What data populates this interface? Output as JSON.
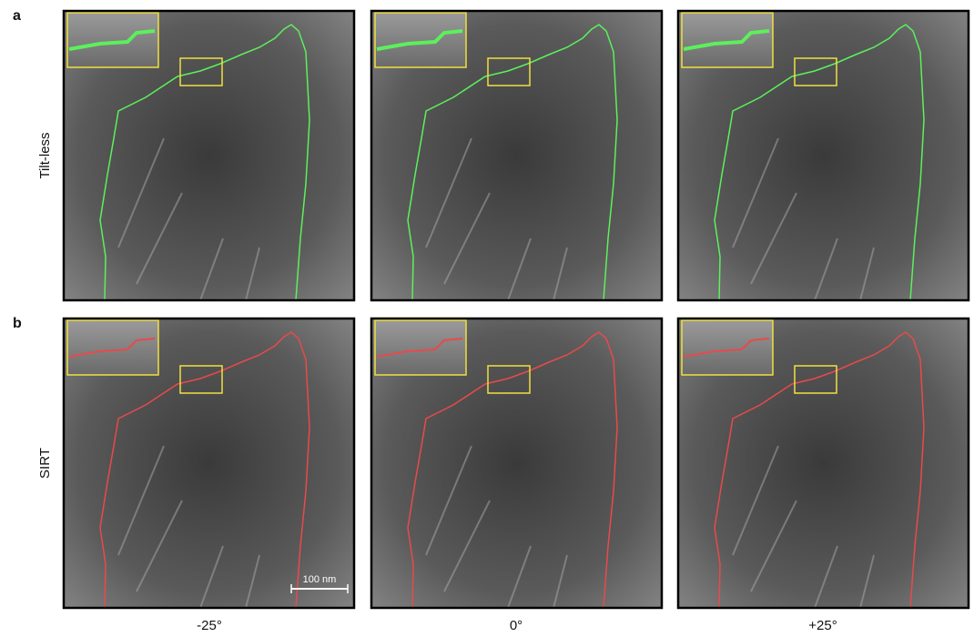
{
  "panel_labels": [
    "a",
    "b"
  ],
  "rows": [
    "Tilt-less",
    "SIRT"
  ],
  "columns": [
    "-25°",
    "0°",
    "+25°"
  ],
  "scale_bar": "100 nm"
}
